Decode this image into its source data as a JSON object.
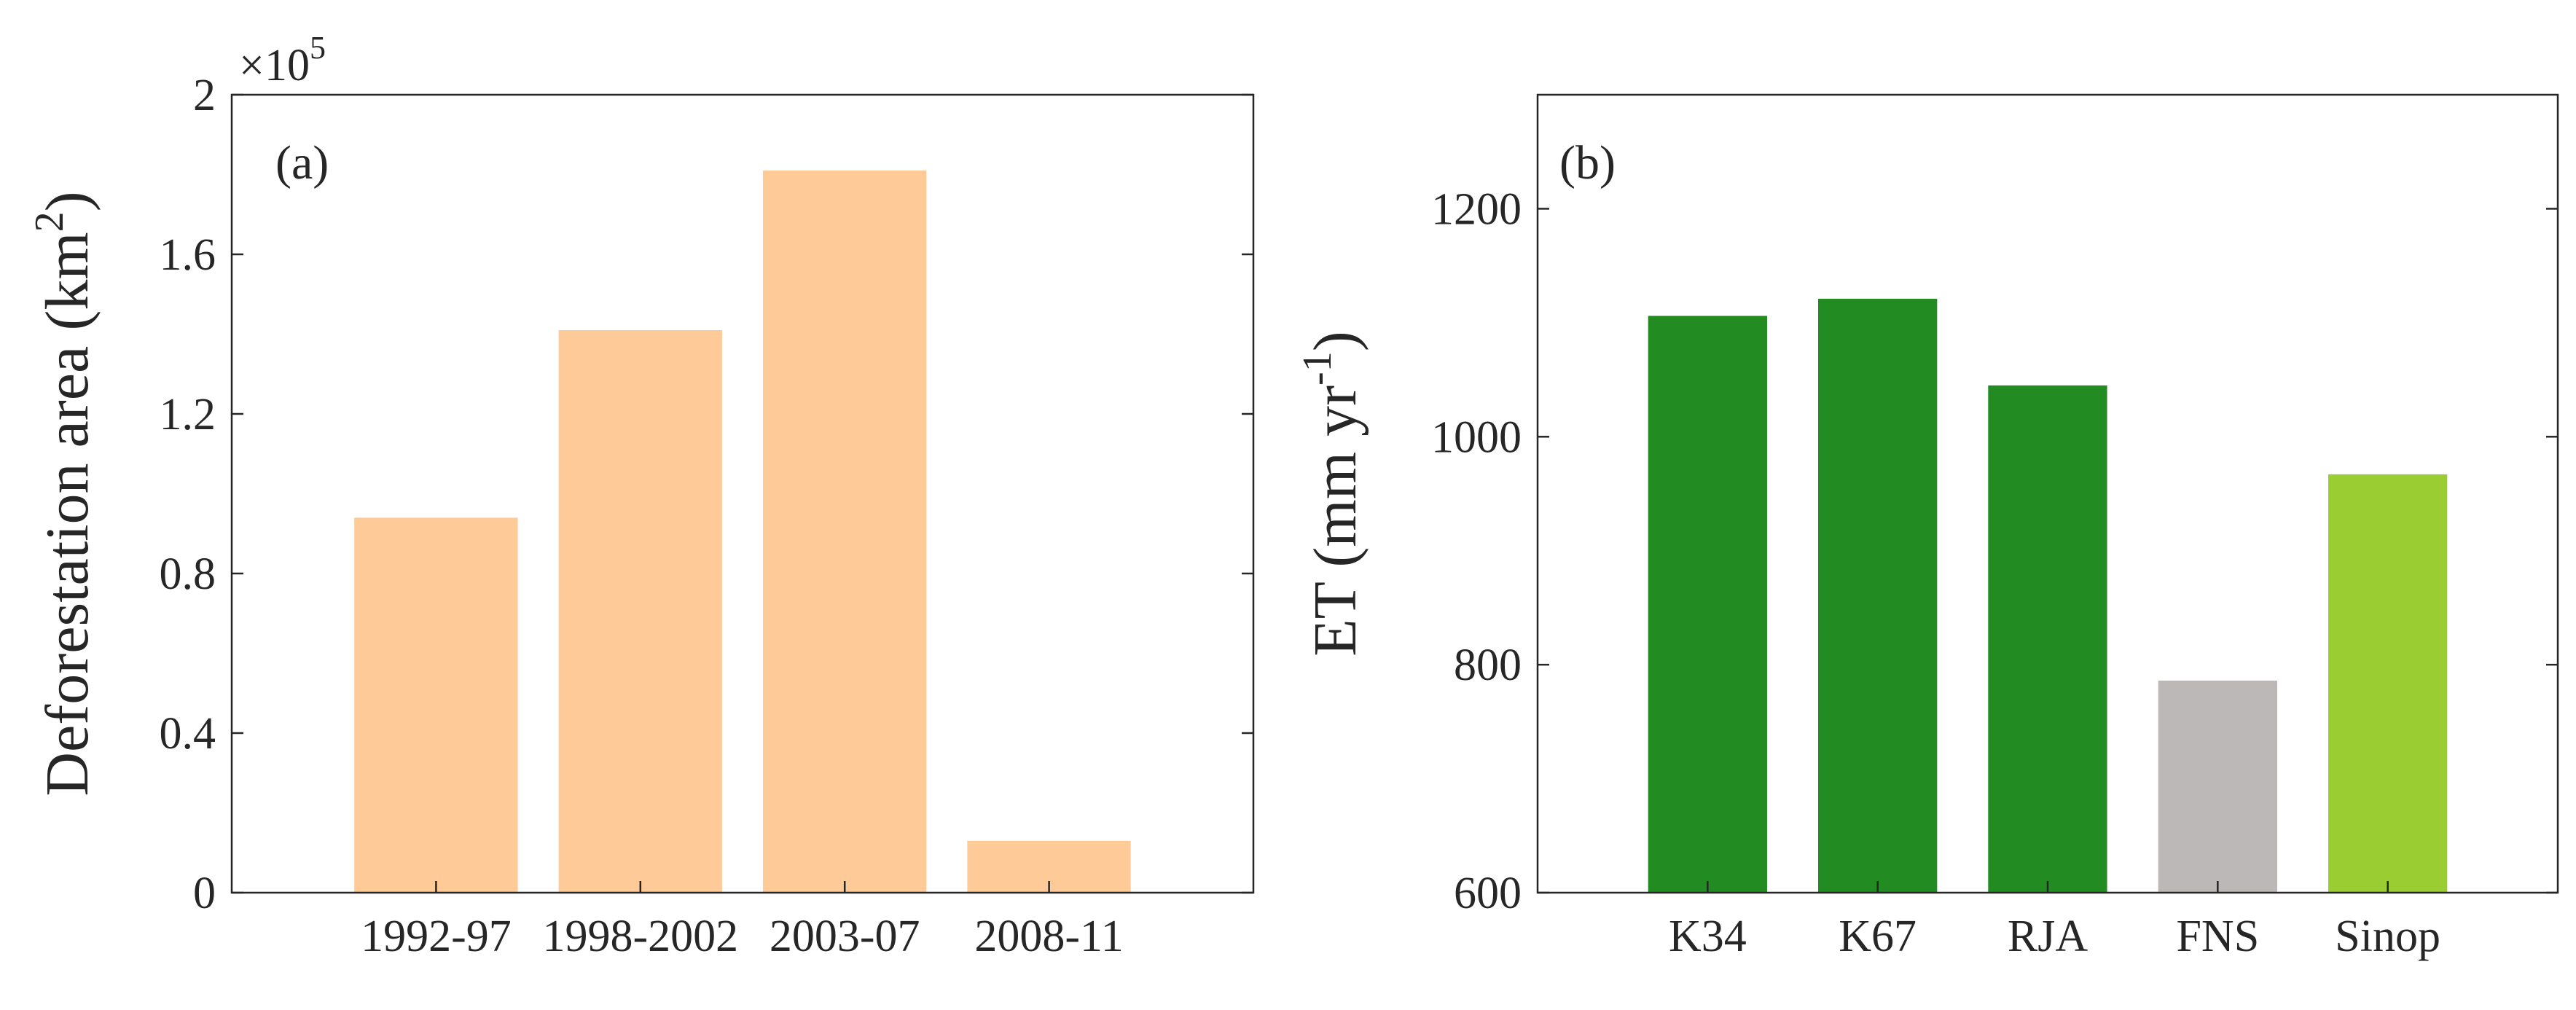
{
  "chart_data": [
    {
      "type": "bar",
      "panel_label": "(a)",
      "categories": [
        "1992-97",
        "1998-2002",
        "2003-07",
        "2008-11"
      ],
      "values": [
        0.94,
        1.41,
        1.81,
        0.13
      ],
      "bar_colors": [
        "#fdca98",
        "#fdca98",
        "#fdca98",
        "#fdca98"
      ],
      "ylabel_main": "Deforestation area (km",
      "ylabel_sup": "2",
      "ylabel_close": ")",
      "ylim": [
        0,
        2
      ],
      "yticks": [
        0,
        0.4,
        0.8,
        1.2,
        1.6,
        2
      ],
      "ytick_labels": [
        "0",
        "0.4",
        "0.8",
        "1.2",
        "1.6",
        "2"
      ],
      "multiplier_base": "×10",
      "multiplier_exp": "5",
      "grid": false
    },
    {
      "type": "bar",
      "panel_label": "(b)",
      "categories": [
        "K34",
        "K67",
        "RJA",
        "FNS",
        "Sinop"
      ],
      "values": [
        1106,
        1121,
        1045,
        786,
        967
      ],
      "bar_colors": [
        "#228b22",
        "#228b22",
        "#228b22",
        "#bcb8b8",
        "#9acd32"
      ],
      "ylabel_main": "ET (mm yr",
      "ylabel_sup": "-1",
      "ylabel_close": ")",
      "ylim": [
        600,
        1300
      ],
      "yticks": [
        600,
        800,
        1000,
        1200
      ],
      "ytick_labels": [
        "600",
        "800",
        "1000",
        "1200"
      ],
      "grid": false
    }
  ]
}
